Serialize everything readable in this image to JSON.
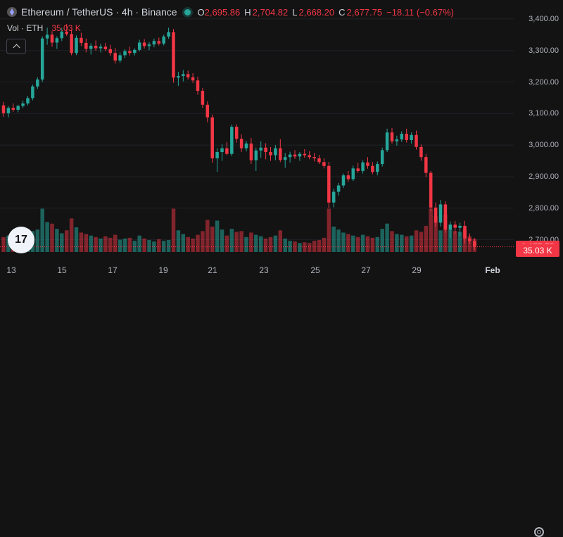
{
  "header": {
    "title": "Ethereum / TetherUS · 4h · Binance",
    "ohlc": [
      {
        "key": "O",
        "value": "2,695.86"
      },
      {
        "key": "H",
        "value": "2,704.82"
      },
      {
        "key": "L",
        "value": "2,668.20"
      },
      {
        "key": "C",
        "value": "2,677.75"
      }
    ],
    "change": "−18.11 (−0.67%)"
  },
  "volume_legend": {
    "label": "Vol · ETH",
    "value": "35.03 K"
  },
  "logo_text": "17",
  "colors": {
    "up": "#26a69a",
    "down": "#f23645",
    "background": "#131313",
    "axis_text": "#b2b5be"
  },
  "icons": {
    "collapse": "chevron-up-icon",
    "settings": "gear-icon",
    "symbol": "ethereum-icon",
    "status": "live-dot-icon"
  },
  "price_axis": {
    "ticks": [
      "3,400.00",
      "3,300.00",
      "3,200.00",
      "3,100.00",
      "3,000.00",
      "2,900.00",
      "2,800.00",
      "2,700.00"
    ],
    "last_price_label": "2,677.75",
    "volume_label": "35.03 K"
  },
  "time_axis": {
    "ticks": [
      "13",
      "15",
      "17",
      "19",
      "21",
      "23",
      "25",
      "27",
      "29",
      "Feb"
    ]
  },
  "chart_data": {
    "type": "candlestick",
    "interval": "4h",
    "y_range": [
      2630,
      3460
    ],
    "last_price": 2677.75,
    "ohlc": [
      [
        3126,
        3137,
        3090,
        3101
      ],
      [
        3101,
        3124,
        3088,
        3118
      ],
      [
        3118,
        3132,
        3105,
        3112
      ],
      [
        3112,
        3128,
        3104,
        3124
      ],
      [
        3124,
        3141,
        3118,
        3132
      ],
      [
        3132,
        3156,
        3126,
        3149
      ],
      [
        3149,
        3192,
        3142,
        3186
      ],
      [
        3186,
        3215,
        3178,
        3208
      ],
      [
        3208,
        3345,
        3200,
        3338
      ],
      [
        3338,
        3372,
        3318,
        3350
      ],
      [
        3350,
        3362,
        3312,
        3325
      ],
      [
        3325,
        3345,
        3305,
        3339
      ],
      [
        3339,
        3372,
        3330,
        3360
      ],
      [
        3360,
        3384,
        3346,
        3352
      ],
      [
        3352,
        3367,
        3285,
        3292
      ],
      [
        3292,
        3348,
        3285,
        3340
      ],
      [
        3340,
        3356,
        3315,
        3324
      ],
      [
        3324,
        3338,
        3294,
        3305
      ],
      [
        3305,
        3323,
        3287,
        3315
      ],
      [
        3315,
        3332,
        3299,
        3307
      ],
      [
        3307,
        3321,
        3294,
        3312
      ],
      [
        3312,
        3324,
        3298,
        3304
      ],
      [
        3304,
        3318,
        3283,
        3292
      ],
      [
        3292,
        3308,
        3258,
        3268
      ],
      [
        3268,
        3294,
        3261,
        3285
      ],
      [
        3285,
        3304,
        3276,
        3298
      ],
      [
        3298,
        3312,
        3284,
        3292
      ],
      [
        3292,
        3307,
        3284,
        3302
      ],
      [
        3302,
        3334,
        3297,
        3325
      ],
      [
        3325,
        3336,
        3306,
        3314
      ],
      [
        3314,
        3327,
        3301,
        3319
      ],
      [
        3319,
        3338,
        3310,
        3330
      ],
      [
        3330,
        3341,
        3316,
        3322
      ],
      [
        3322,
        3350,
        3316,
        3344
      ],
      [
        3344,
        3372,
        3337,
        3358
      ],
      [
        3358,
        3368,
        3198,
        3214
      ],
      [
        3214,
        3232,
        3188,
        3219
      ],
      [
        3219,
        3238,
        3202,
        3225
      ],
      [
        3225,
        3236,
        3208,
        3215
      ],
      [
        3215,
        3228,
        3197,
        3205
      ],
      [
        3205,
        3217,
        3160,
        3172
      ],
      [
        3172,
        3181,
        3118,
        3128
      ],
      [
        3128,
        3139,
        3072,
        3088
      ],
      [
        3088,
        3097,
        2944,
        2958
      ],
      [
        2958,
        2990,
        2915,
        2978
      ],
      [
        2978,
        3003,
        2950,
        2990
      ],
      [
        2990,
        3010,
        2968,
        2972
      ],
      [
        2972,
        3065,
        2965,
        3058
      ],
      [
        3058,
        3066,
        3008,
        3020
      ],
      [
        3020,
        3034,
        2978,
        2990
      ],
      [
        2990,
        3013,
        2980,
        3005
      ],
      [
        3005,
        3023,
        2940,
        2952
      ],
      [
        2952,
        2992,
        2918,
        2983
      ],
      [
        2983,
        3012,
        2960,
        2992
      ],
      [
        2992,
        3006,
        2955,
        2978
      ],
      [
        2978,
        2994,
        2950,
        2968
      ],
      [
        2968,
        3000,
        2952,
        2990
      ],
      [
        2990,
        3019,
        2946,
        2953
      ],
      [
        2953,
        2975,
        2928,
        2962
      ],
      [
        2962,
        2979,
        2945,
        2970
      ],
      [
        2970,
        2984,
        2956,
        2964
      ],
      [
        2964,
        2978,
        2950,
        2972
      ],
      [
        2972,
        2987,
        2960,
        2968
      ],
      [
        2968,
        2981,
        2955,
        2962
      ],
      [
        2962,
        2975,
        2948,
        2958
      ],
      [
        2958,
        2969,
        2940,
        2946
      ],
      [
        2946,
        2958,
        2926,
        2934
      ],
      [
        2934,
        2947,
        2800,
        2818
      ],
      [
        2818,
        2862,
        2803,
        2852
      ],
      [
        2852,
        2880,
        2840,
        2872
      ],
      [
        2872,
        2910,
        2864,
        2904
      ],
      [
        2904,
        2918,
        2884,
        2892
      ],
      [
        2892,
        2935,
        2886,
        2926
      ],
      [
        2926,
        2944,
        2912,
        2918
      ],
      [
        2918,
        2952,
        2910,
        2945
      ],
      [
        2945,
        2962,
        2925,
        2934
      ],
      [
        2934,
        2946,
        2908,
        2915
      ],
      [
        2915,
        2948,
        2904,
        2940
      ],
      [
        2940,
        2992,
        2932,
        2984
      ],
      [
        2984,
        3052,
        2978,
        3040
      ],
      [
        3040,
        3054,
        3005,
        3012
      ],
      [
        3012,
        3030,
        2998,
        3018
      ],
      [
        3018,
        3044,
        3010,
        3036
      ],
      [
        3036,
        3052,
        3008,
        3016
      ],
      [
        3016,
        3040,
        3005,
        3032
      ],
      [
        3032,
        3046,
        2986,
        2994
      ],
      [
        2994,
        3002,
        2950,
        2962
      ],
      [
        2962,
        2972,
        2898,
        2912
      ],
      [
        2912,
        2918,
        2790,
        2802
      ],
      [
        2802,
        2818,
        2742,
        2754
      ],
      [
        2754,
        2826,
        2742,
        2812
      ],
      [
        2812,
        2822,
        2722,
        2732
      ],
      [
        2732,
        2758,
        2706,
        2748
      ],
      [
        2748,
        2760,
        2718,
        2738
      ],
      [
        2738,
        2754,
        2712,
        2744
      ],
      [
        2744,
        2760,
        2688,
        2704
      ],
      [
        2704,
        2720,
        2686,
        2696
      ],
      [
        2696,
        2705,
        2668,
        2678
      ]
    ],
    "volume": [
      40,
      44,
      33,
      38,
      40,
      48,
      56,
      60,
      116,
      80,
      76,
      62,
      50,
      58,
      90,
      66,
      52,
      48,
      44,
      40,
      36,
      42,
      38,
      46,
      33,
      36,
      38,
      30,
      44,
      36,
      32,
      28,
      34,
      30,
      32,
      116,
      58,
      48,
      40,
      36,
      46,
      56,
      86,
      68,
      84,
      60,
      44,
      62,
      54,
      56,
      40,
      52,
      46,
      42,
      36,
      40,
      44,
      58,
      36,
      30,
      28,
      24,
      26,
      24,
      30,
      32,
      38,
      116,
      68,
      60,
      52,
      48,
      44,
      40,
      46,
      42,
      38,
      40,
      62,
      76,
      56,
      48,
      46,
      42,
      44,
      58,
      54,
      70,
      116,
      96,
      58,
      100,
      60,
      56,
      54,
      60,
      42,
      35
    ]
  }
}
